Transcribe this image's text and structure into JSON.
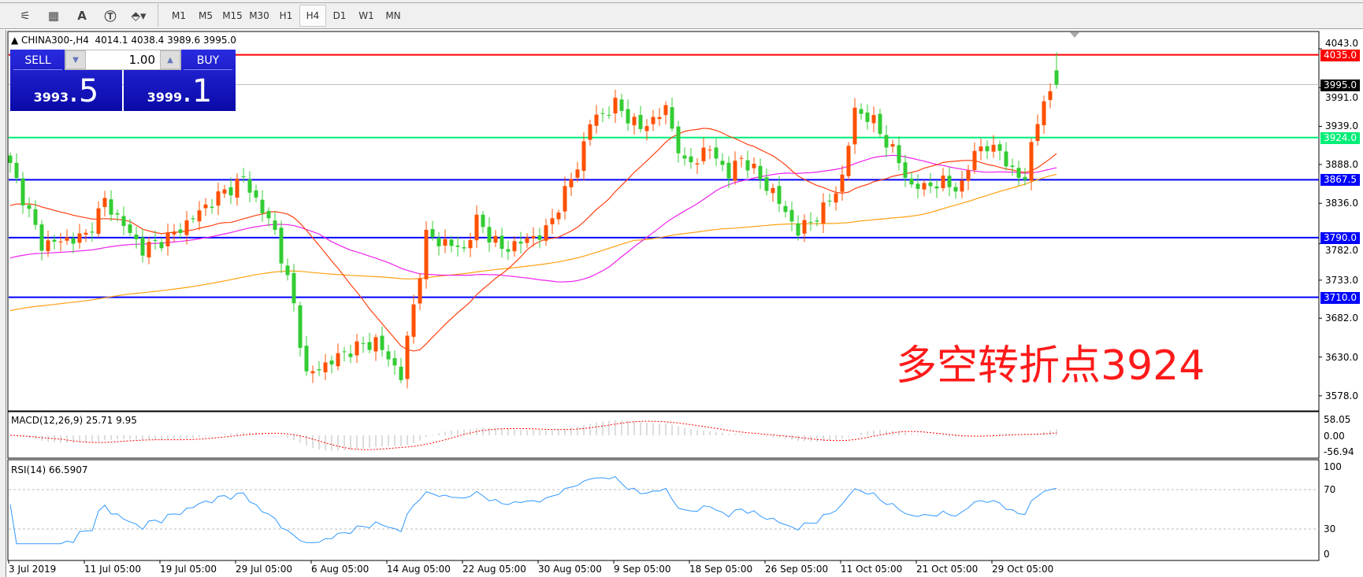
{
  "toolbar": {
    "icons": [
      "fibonacci-expansion-icon",
      "fibonacci-fan-icon",
      "text-icon",
      "text-label-icon",
      "arrows-dropdown-icon"
    ],
    "icon_glyphs": [
      "⚟",
      "▦",
      "A",
      "Ⓣ",
      "⬘▾"
    ],
    "timeframes": [
      "M1",
      "M5",
      "M15",
      "M30",
      "H1",
      "H4",
      "D1",
      "W1",
      "MN"
    ],
    "selected": "H4"
  },
  "chart": {
    "header": "CHINA300-,H4  4014.1 4038.4 3989.6 3995.0",
    "symbol": "CHINA300-",
    "period": "H4",
    "ohlc": {
      "open": 4014.1,
      "high": 4038.4,
      "low": 3989.6,
      "close": 3995.0
    }
  },
  "trade_panel": {
    "sell_label": "SELL",
    "buy_label": "BUY",
    "lots": "1.00",
    "sell_main": "3993",
    "sell_frac": ".5",
    "buy_main": "3999",
    "buy_frac": ".1"
  },
  "annotation": "多空转折点3924",
  "price_axis": {
    "ticks": [
      "4043.0",
      "3991.0",
      "3939.0",
      "3888.0",
      "3836.0",
      "3782.0",
      "3733.0",
      "3682.0",
      "3630.0",
      "3578.0"
    ],
    "tick_values": [
      4043,
      3991,
      3939,
      3888,
      3836,
      3782,
      3733,
      3682,
      3630,
      3578
    ]
  },
  "levels": [
    {
      "value": 4035.0,
      "label": "4035.0",
      "color": "#ff0000"
    },
    {
      "value": 3995.0,
      "label": "3995.0",
      "color": "#c0c0c0",
      "tag_color": "#000000"
    },
    {
      "value": 3924.0,
      "label": "3924.0",
      "color": "#00ee77"
    },
    {
      "value": 3867.5,
      "label": "3867.5",
      "color": "#0000ff"
    },
    {
      "value": 3790.0,
      "label": "3790.0",
      "color": "#0000ff"
    },
    {
      "value": 3710.0,
      "label": "3710.0",
      "color": "#0000ff"
    }
  ],
  "macd": {
    "label": "MACD(12,26,9) 25.71 9.95",
    "ticks": [
      "58.05",
      "0.00",
      "-56.94"
    ]
  },
  "rsi": {
    "label": "RSI(14) 66.5907",
    "ticks": [
      "100",
      "70",
      "30",
      "0"
    ]
  },
  "time_axis": [
    "3 Jul 2019",
    "11 Jul 05:00",
    "19 Jul 05:00",
    "29 Jul 05:00",
    "6 Aug 05:00",
    "14 Aug 05:00",
    "22 Aug 05:00",
    "30 Aug 05:00",
    "9 Sep 05:00",
    "18 Sep 05:00",
    "26 Sep 05:00",
    "11 Oct 05:00",
    "21 Oct 05:00",
    "29 Oct 05:00"
  ],
  "colors": {
    "bull": "#ff5000",
    "bear": "#33cc33",
    "ma_fast": "#ff4010",
    "ma_mid": "#ee22ee",
    "ma_slow": "#ffa010",
    "rsi": "#3399ff",
    "macd_signal": "#ff0000",
    "macd_hist": "#bbbbbb"
  },
  "chart_data": {
    "type": "candlestick",
    "bars": 167,
    "close_waypoints": [
      [
        0,
        3886
      ],
      [
        5,
        3781
      ],
      [
        12,
        3792
      ],
      [
        15,
        3839
      ],
      [
        21,
        3774
      ],
      [
        26,
        3795
      ],
      [
        32,
        3839
      ],
      [
        37,
        3869
      ],
      [
        42,
        3798
      ],
      [
        45,
        3699
      ],
      [
        47,
        3605
      ],
      [
        54,
        3640
      ],
      [
        58,
        3651
      ],
      [
        62,
        3605
      ],
      [
        64,
        3699
      ],
      [
        66,
        3792
      ],
      [
        72,
        3774
      ],
      [
        74,
        3813
      ],
      [
        78,
        3774
      ],
      [
        85,
        3798
      ],
      [
        90,
        3886
      ],
      [
        92,
        3945
      ],
      [
        96,
        3968
      ],
      [
        100,
        3936
      ],
      [
        104,
        3962
      ],
      [
        107,
        3886
      ],
      [
        111,
        3909
      ],
      [
        114,
        3874
      ],
      [
        116,
        3898
      ],
      [
        121,
        3850
      ],
      [
        125,
        3798
      ],
      [
        129,
        3827
      ],
      [
        132,
        3869
      ],
      [
        134,
        3962
      ],
      [
        137,
        3945
      ],
      [
        141,
        3892
      ],
      [
        143,
        3857
      ],
      [
        148,
        3863
      ],
      [
        151,
        3857
      ],
      [
        153,
        3909
      ],
      [
        157,
        3909
      ],
      [
        159,
        3874
      ],
      [
        161,
        3874
      ],
      [
        163,
        3945
      ],
      [
        164,
        3974
      ],
      [
        166,
        3995
      ]
    ],
    "ylim": [
      3560,
      4050
    ]
  }
}
